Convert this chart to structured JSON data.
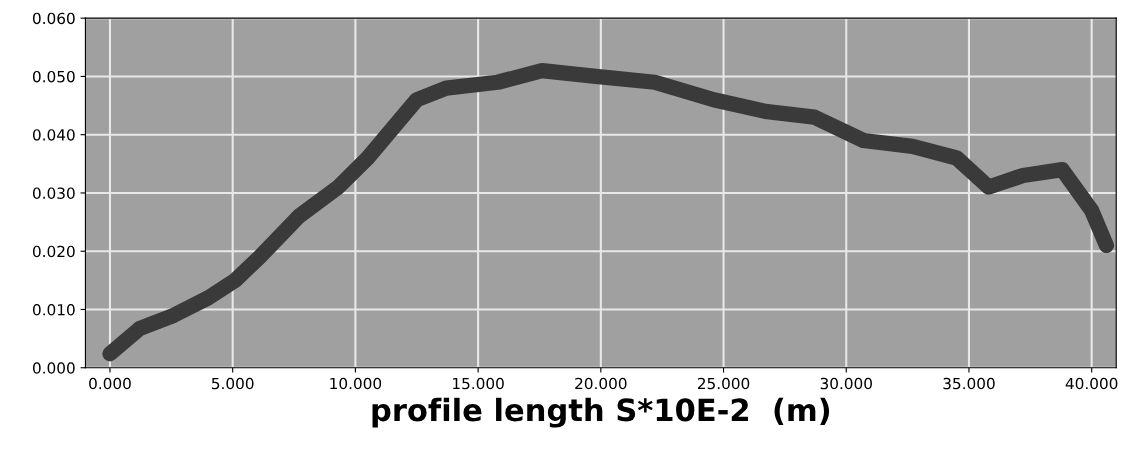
{
  "chart_data": {
    "type": "line",
    "xlabel": "profile length S*10E-2  (m)",
    "x": [
      0,
      1.2,
      2.6,
      4.0,
      5.1,
      6.1,
      7.7,
      9.3,
      10.5,
      11.7,
      12.5,
      13.7,
      15.8,
      17.6,
      19.8,
      22.2,
      24.6,
      26.7,
      28.7,
      30.7,
      32.7,
      34.5,
      35.8,
      37.2,
      38.8,
      40.0,
      40.6
    ],
    "series": [
      {
        "color": "#3a3a3a",
        "values": [
          0.0024,
          0.0067,
          0.009,
          0.012,
          0.015,
          0.019,
          0.026,
          0.031,
          0.036,
          0.042,
          0.046,
          0.048,
          0.049,
          0.051,
          0.05,
          0.049,
          0.046,
          0.044,
          0.043,
          0.039,
          0.038,
          0.036,
          0.031,
          0.033,
          0.034,
          0.027,
          0.021
        ]
      }
    ],
    "xlim": [
      -1,
      41
    ],
    "ylim": [
      0,
      0.06
    ],
    "xticks": [
      {
        "value": 0,
        "label": "0.000"
      },
      {
        "value": 5,
        "label": "5.000"
      },
      {
        "value": 10,
        "label": "10.000"
      },
      {
        "value": 15,
        "label": "15.000"
      },
      {
        "value": 20,
        "label": "20.000"
      },
      {
        "value": 25,
        "label": "25.000"
      },
      {
        "value": 30,
        "label": "30.000"
      },
      {
        "value": 35,
        "label": "35.000"
      },
      {
        "value": 40,
        "label": "40.000"
      }
    ],
    "yticks": [
      {
        "value": 0,
        "label": "0.000"
      },
      {
        "value": 0.01,
        "label": "0.010"
      },
      {
        "value": 0.02,
        "label": "0.020"
      },
      {
        "value": 0.03,
        "label": "0.030"
      },
      {
        "value": 0.04,
        "label": "0.040"
      },
      {
        "value": 0.05,
        "label": "0.050"
      },
      {
        "value": 0.06,
        "label": "0.060"
      }
    ],
    "grid": true,
    "line_style": "solid"
  }
}
